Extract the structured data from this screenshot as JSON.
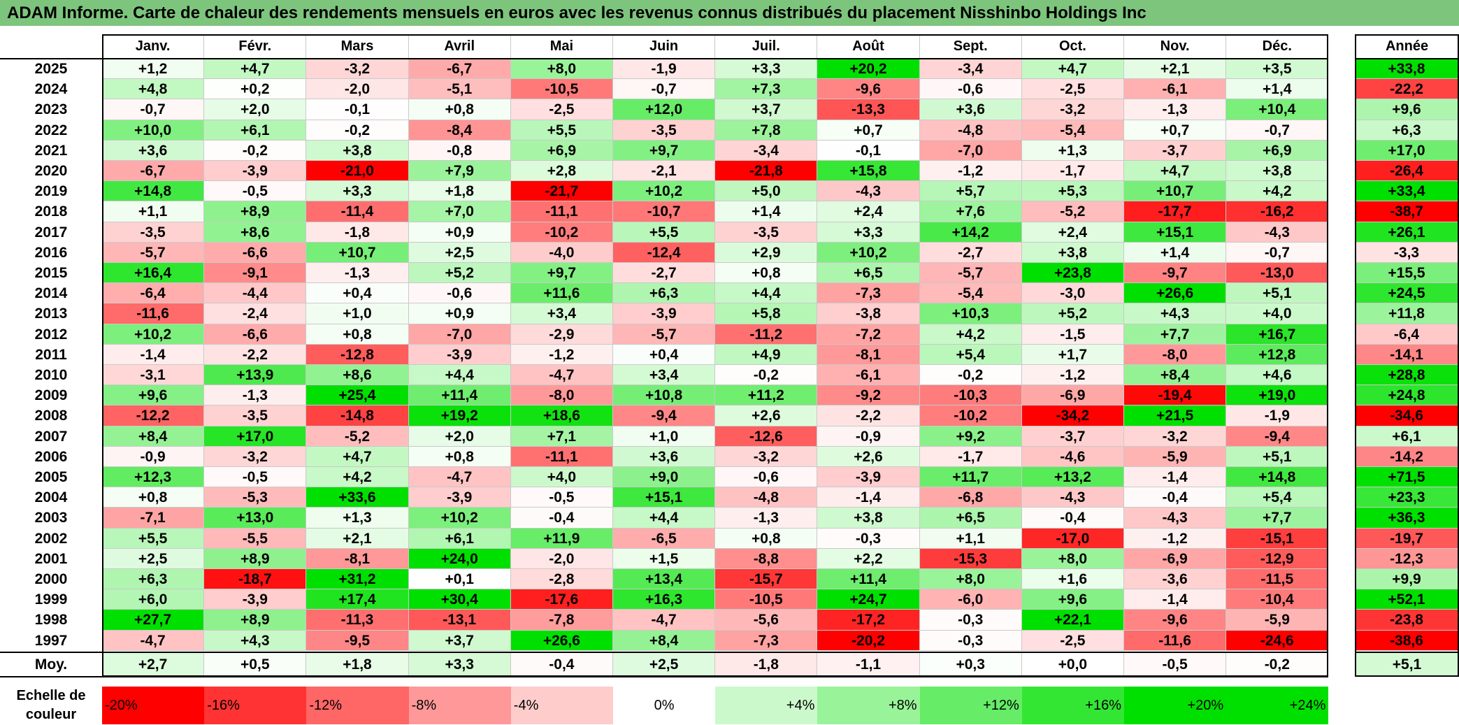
{
  "title": "ADAM Informe. Carte de chaleur des rendements mensuels en euros avec les revenus connus distribués du placement Nisshinbo Holdings Inc",
  "chart_data": {
    "type": "heatmap",
    "columns": [
      "Janv.",
      "Févr.",
      "Mars",
      "Avril",
      "Mai",
      "Juin",
      "Juil.",
      "Août",
      "Sept.",
      "Oct.",
      "Nov.",
      "Déc."
    ],
    "year_column": "Année",
    "rows": [
      {
        "year": "2025",
        "values": [
          "+1,2",
          "+4,7",
          "-3,2",
          "-6,7",
          "+8,0",
          "-1,9",
          "+3,3",
          "+20,2",
          "-3,4",
          "+4,7",
          "+2,1",
          "+3,5"
        ],
        "annual": "+33,8"
      },
      {
        "year": "2024",
        "values": [
          "+4,8",
          "+0,2",
          "-2,0",
          "-5,1",
          "-10,5",
          "-0,7",
          "+7,3",
          "-9,6",
          "-0,6",
          "-2,5",
          "-6,1",
          "+1,4"
        ],
        "annual": "-22,2"
      },
      {
        "year": "2023",
        "values": [
          "-0,7",
          "+2,0",
          "-0,1",
          "+0,8",
          "-2,5",
          "+12,0",
          "+3,7",
          "-13,3",
          "+3,6",
          "-3,2",
          "-1,3",
          "+10,4"
        ],
        "annual": "+9,6"
      },
      {
        "year": "2022",
        "values": [
          "+10,0",
          "+6,1",
          "-0,2",
          "-8,4",
          "+5,5",
          "-3,5",
          "+7,8",
          "+0,7",
          "-4,8",
          "-5,4",
          "+0,7",
          "-0,7"
        ],
        "annual": "+6,3"
      },
      {
        "year": "2021",
        "values": [
          "+3,6",
          "-0,2",
          "+3,8",
          "-0,8",
          "+6,9",
          "+9,7",
          "-3,4",
          "-0,1",
          "-7,0",
          "+1,3",
          "-3,7",
          "+6,9"
        ],
        "annual": "+17,0"
      },
      {
        "year": "2020",
        "values": [
          "-6,7",
          "-3,9",
          "-21,0",
          "+7,9",
          "+2,8",
          "-2,1",
          "-21,8",
          "+15,8",
          "-1,2",
          "-1,7",
          "+4,7",
          "+3,8"
        ],
        "annual": "-26,4"
      },
      {
        "year": "2019",
        "values": [
          "+14,8",
          "-0,5",
          "+3,3",
          "+1,8",
          "-21,7",
          "+10,2",
          "+5,0",
          "-4,3",
          "+5,7",
          "+5,3",
          "+10,7",
          "+4,2"
        ],
        "annual": "+33,4"
      },
      {
        "year": "2018",
        "values": [
          "+1,1",
          "+8,9",
          "-11,4",
          "+7,0",
          "-11,1",
          "-10,7",
          "+1,4",
          "+2,4",
          "+7,6",
          "-5,2",
          "-17,7",
          "-16,2"
        ],
        "annual": "-38,7"
      },
      {
        "year": "2017",
        "values": [
          "-3,5",
          "+8,6",
          "-1,8",
          "+0,9",
          "-10,2",
          "+5,5",
          "-3,5",
          "+3,3",
          "+14,2",
          "+2,4",
          "+15,1",
          "-4,3"
        ],
        "annual": "+26,1"
      },
      {
        "year": "2016",
        "values": [
          "-5,7",
          "-6,6",
          "+10,7",
          "+2,5",
          "-4,0",
          "-12,4",
          "+2,9",
          "+10,2",
          "-2,7",
          "+3,8",
          "+1,4",
          "-0,7"
        ],
        "annual": "-3,3"
      },
      {
        "year": "2015",
        "values": [
          "+16,4",
          "-9,1",
          "-1,3",
          "+5,2",
          "+9,7",
          "-2,7",
          "+0,8",
          "+6,5",
          "-5,7",
          "+23,8",
          "-9,7",
          "-13,0"
        ],
        "annual": "+15,5"
      },
      {
        "year": "2014",
        "values": [
          "-6,4",
          "-4,4",
          "+0,4",
          "-0,6",
          "+11,6",
          "+6,3",
          "+4,4",
          "-7,3",
          "-5,4",
          "-3,0",
          "+26,6",
          "+5,1"
        ],
        "annual": "+24,5"
      },
      {
        "year": "2013",
        "values": [
          "-11,6",
          "-2,4",
          "+1,0",
          "+0,9",
          "+3,4",
          "-3,9",
          "+5,8",
          "-3,8",
          "+10,3",
          "+5,2",
          "+4,3",
          "+4,0"
        ],
        "annual": "+11,8"
      },
      {
        "year": "2012",
        "values": [
          "+10,2",
          "-6,6",
          "+0,8",
          "-7,0",
          "-2,9",
          "-5,7",
          "-11,2",
          "-7,2",
          "+4,2",
          "-1,5",
          "+7,7",
          "+16,7"
        ],
        "annual": "-6,4"
      },
      {
        "year": "2011",
        "values": [
          "-1,4",
          "-2,2",
          "-12,8",
          "-3,9",
          "-1,2",
          "+0,4",
          "+4,9",
          "-8,1",
          "+5,4",
          "+1,7",
          "-8,0",
          "+12,8"
        ],
        "annual": "-14,1"
      },
      {
        "year": "2010",
        "values": [
          "-3,1",
          "+13,9",
          "+8,6",
          "+4,4",
          "-4,7",
          "+3,4",
          "-0,2",
          "-6,1",
          "-0,2",
          "-1,2",
          "+8,4",
          "+4,6"
        ],
        "annual": "+28,8"
      },
      {
        "year": "2009",
        "values": [
          "+9,6",
          "-1,3",
          "+25,4",
          "+11,4",
          "-8,0",
          "+10,8",
          "+11,2",
          "-9,2",
          "-10,3",
          "-6,9",
          "-19,4",
          "+19,0"
        ],
        "annual": "+24,8"
      },
      {
        "year": "2008",
        "values": [
          "-12,2",
          "-3,5",
          "-14,8",
          "+19,2",
          "+18,6",
          "-9,4",
          "+2,6",
          "-2,2",
          "-10,2",
          "-34,2",
          "+21,5",
          "-1,9"
        ],
        "annual": "-34,6"
      },
      {
        "year": "2007",
        "values": [
          "+8,4",
          "+17,0",
          "-5,2",
          "+2,0",
          "+7,1",
          "+1,0",
          "-12,6",
          "-0,9",
          "+9,2",
          "-3,7",
          "-3,2",
          "-9,4"
        ],
        "annual": "+6,1"
      },
      {
        "year": "2006",
        "values": [
          "-0,9",
          "-3,2",
          "+4,7",
          "+0,8",
          "-11,1",
          "+3,6",
          "-3,2",
          "+2,6",
          "-1,7",
          "-4,6",
          "-5,9",
          "+5,1"
        ],
        "annual": "-14,2"
      },
      {
        "year": "2005",
        "values": [
          "+12,3",
          "-0,5",
          "+4,2",
          "-4,7",
          "+4,0",
          "+9,0",
          "-0,6",
          "-3,9",
          "+11,7",
          "+13,2",
          "-1,4",
          "+14,8"
        ],
        "annual": "+71,5"
      },
      {
        "year": "2004",
        "values": [
          "+0,8",
          "-5,3",
          "+33,6",
          "-3,9",
          "-0,5",
          "+15,1",
          "-4,8",
          "-1,4",
          "-6,8",
          "-4,3",
          "-0,4",
          "+5,4"
        ],
        "annual": "+23,3"
      },
      {
        "year": "2003",
        "values": [
          "-7,1",
          "+13,0",
          "+1,3",
          "+10,2",
          "-0,4",
          "+4,4",
          "-1,3",
          "+3,8",
          "+6,5",
          "-0,4",
          "-4,3",
          "+7,7"
        ],
        "annual": "+36,3"
      },
      {
        "year": "2002",
        "values": [
          "+5,5",
          "-5,5",
          "+2,1",
          "+6,1",
          "+11,9",
          "-6,5",
          "+0,8",
          "-0,3",
          "+1,1",
          "-17,0",
          "-1,2",
          "-15,1"
        ],
        "annual": "-19,7"
      },
      {
        "year": "2001",
        "values": [
          "+2,5",
          "+8,9",
          "-8,1",
          "+24,0",
          "-2,0",
          "+1,5",
          "-8,8",
          "+2,2",
          "-15,3",
          "+8,0",
          "-6,9",
          "-12,9"
        ],
        "annual": "-12,3"
      },
      {
        "year": "2000",
        "values": [
          "+6,3",
          "-18,7",
          "+31,2",
          "+0,1",
          "-2,8",
          "+13,4",
          "-15,7",
          "+11,4",
          "+8,0",
          "+1,6",
          "-3,6",
          "-11,5"
        ],
        "annual": "+9,9"
      },
      {
        "year": "1999",
        "values": [
          "+6,0",
          "-3,9",
          "+17,4",
          "+30,4",
          "-17,6",
          "+16,3",
          "-10,5",
          "+24,7",
          "-6,0",
          "+9,6",
          "-1,4",
          "-10,4"
        ],
        "annual": "+52,1"
      },
      {
        "year": "1998",
        "values": [
          "+27,7",
          "+8,9",
          "-11,3",
          "-13,1",
          "-7,8",
          "-4,7",
          "-5,6",
          "-17,2",
          "-0,3",
          "+22,1",
          "-9,6",
          "-5,9"
        ],
        "annual": "-23,8"
      },
      {
        "year": "1997",
        "values": [
          "-4,7",
          "+4,3",
          "-9,5",
          "+3,7",
          "+26,6",
          "+8,4",
          "-7,3",
          "-20,2",
          "-0,3",
          "-2,5",
          "-11,6",
          "-24,6"
        ],
        "annual": "-38,6"
      }
    ],
    "average": {
      "label": "Moy.",
      "values": [
        "+2,7",
        "+0,5",
        "+1,8",
        "+3,3",
        "-0,4",
        "+2,5",
        "-1,8",
        "-1,1",
        "+0,3",
        "+0,0",
        "-0,5",
        "-0,2"
      ],
      "annual": "+5,1"
    },
    "scale": {
      "label": "Echelle de couleur",
      "stops": [
        "-20%",
        "-16%",
        "-12%",
        "-8%",
        "-4%",
        "0%",
        "+4%",
        "+8%",
        "+12%",
        "+16%",
        "+20%",
        "+24%"
      ],
      "stop_values": [
        -20,
        -16,
        -12,
        -8,
        -4,
        0,
        4,
        8,
        12,
        16,
        20,
        24
      ]
    },
    "colors": {
      "title_bg": "#7dc57d",
      "neg_max": "#ff0000",
      "neutral": "#ffffff",
      "pos_max": "#00e000"
    }
  }
}
